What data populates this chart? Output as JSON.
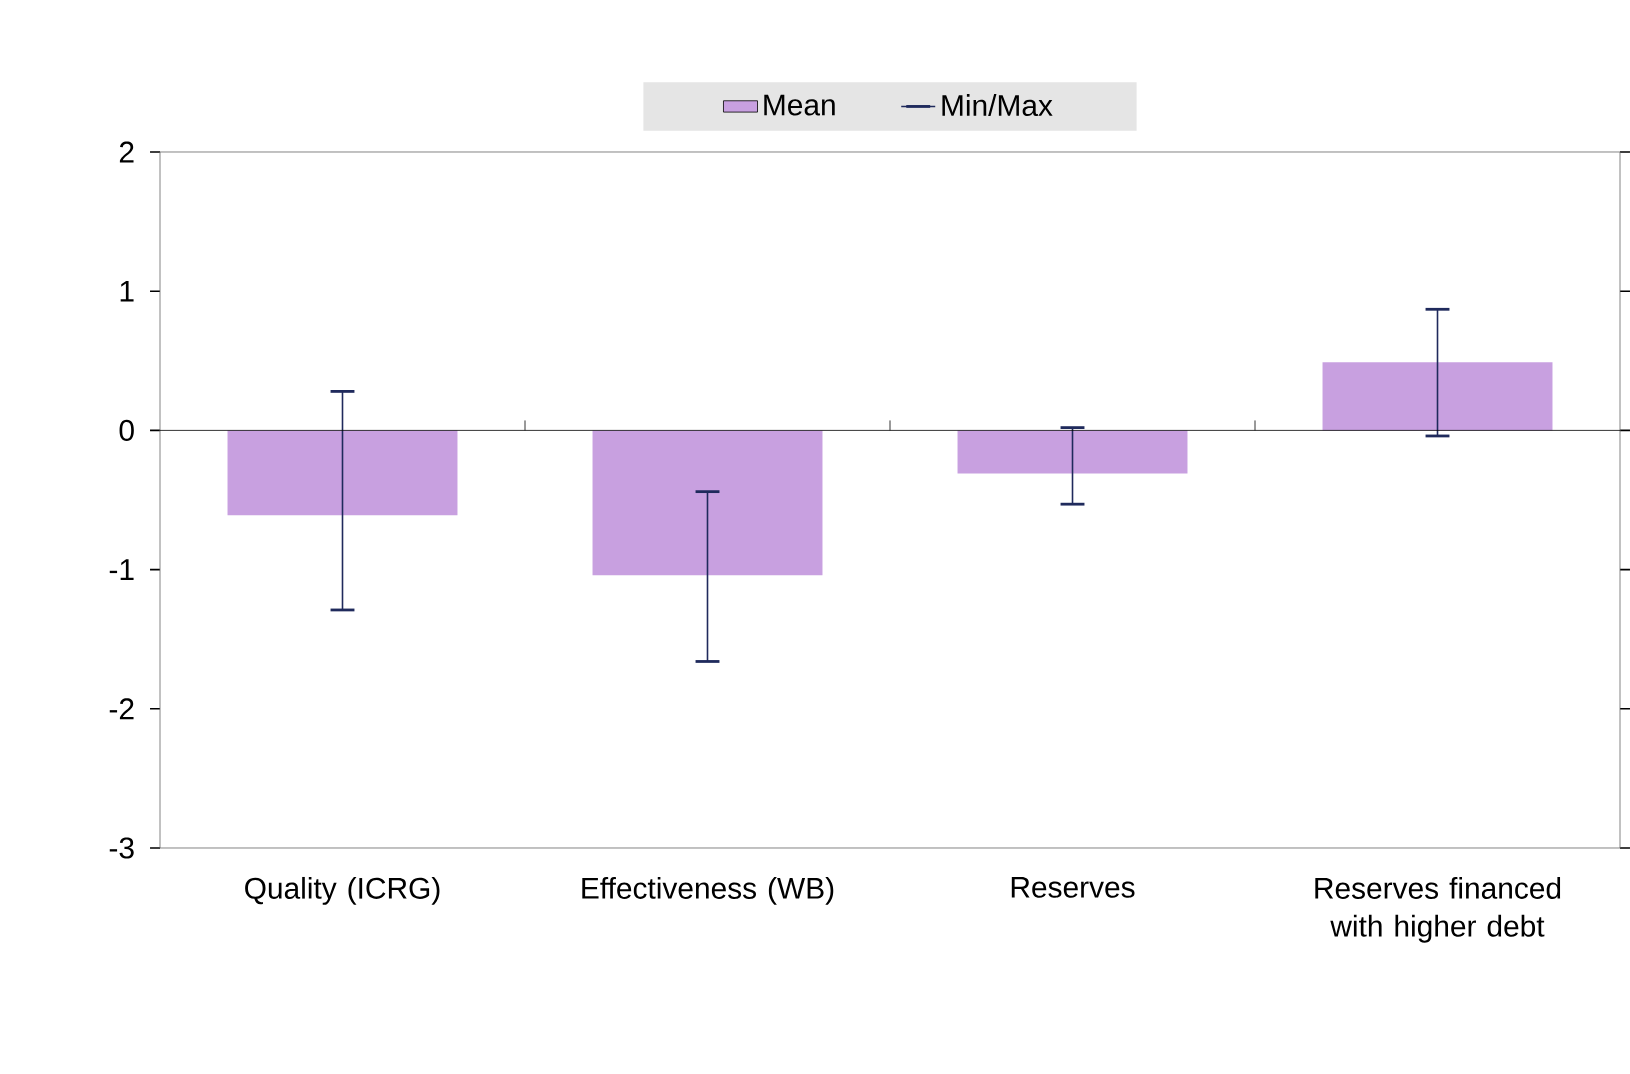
{
  "chart_data": {
    "type": "bar",
    "categories": [
      "Quality (ICRG)",
      "Effectiveness (WB)",
      "Reserves",
      "Reserves financed with higher debt"
    ],
    "series": [
      {
        "name": "Mean",
        "color": "#c8a0e0",
        "values": [
          -0.61,
          -1.04,
          -0.31,
          0.49
        ],
        "errors": [
          [
            -1.29,
            0.28
          ],
          [
            -1.66,
            -0.44
          ],
          [
            -0.53,
            0.02
          ],
          [
            -0.04,
            0.87
          ]
        ]
      }
    ],
    "annotations": [
      "Min/Max"
    ],
    "ylim": [
      -3,
      2
    ],
    "yticks": [
      -3,
      -2,
      -1,
      0,
      1,
      2
    ],
    "legend": "top"
  }
}
